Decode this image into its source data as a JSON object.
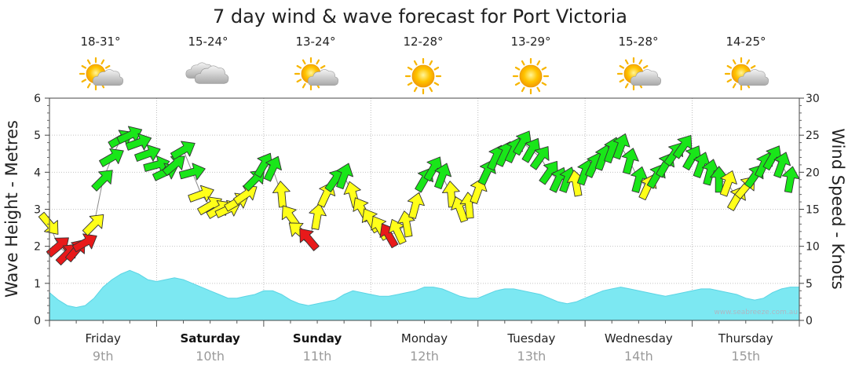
{
  "chart_data": {
    "type": "wind_wave_forecast",
    "title": "7 day wind & wave forecast for Port Victoria",
    "ylabel_left": "Wave Height - Metres",
    "ylabel_right": "Wind Speed - Knots",
    "ylim_left": [
      0,
      6
    ],
    "ylim_right": [
      0,
      30
    ],
    "yticks_left": [
      "0",
      "1",
      "2",
      "3",
      "4",
      "5",
      "6"
    ],
    "yticks_right": [
      "0",
      "5",
      "10",
      "15",
      "20",
      "25",
      "30"
    ],
    "grid": true,
    "credit": "www.seabreeze.com.au",
    "days": [
      {
        "name": "Friday",
        "date": "9th",
        "temp": "18-31°",
        "icon": "sun-cloud-icon",
        "bold": false
      },
      {
        "name": "Saturday",
        "date": "10th",
        "temp": "15-24°",
        "icon": "cloud-icon",
        "bold": true
      },
      {
        "name": "Sunday",
        "date": "11th",
        "temp": "13-24°",
        "icon": "sun-cloud-icon",
        "bold": true
      },
      {
        "name": "Monday",
        "date": "12th",
        "temp": "12-28°",
        "icon": "sun-icon",
        "bold": false
      },
      {
        "name": "Tuesday",
        "date": "13th",
        "temp": "13-29°",
        "icon": "sun-icon",
        "bold": false
      },
      {
        "name": "Wednesday",
        "date": "14th",
        "temp": "15-28°",
        "icon": "sun-cloud-icon",
        "bold": false
      },
      {
        "name": "Thursday",
        "date": "15th",
        "temp": "14-25°",
        "icon": "sun-cloud-icon",
        "bold": false
      }
    ],
    "x_hours": [
      0,
      2,
      4,
      6,
      8,
      10,
      12,
      14,
      16,
      18,
      20,
      22,
      24,
      26,
      28,
      30,
      32,
      34,
      36,
      38,
      40,
      42,
      44,
      46,
      48,
      50,
      52,
      54,
      56,
      58,
      60,
      62,
      64,
      66,
      68,
      70,
      72,
      74,
      76,
      78,
      80,
      82,
      84,
      86,
      88,
      90,
      92,
      94,
      96,
      98,
      100,
      102,
      104,
      106,
      108,
      110,
      112,
      114,
      116,
      118,
      120,
      122,
      124,
      126,
      128,
      130,
      132,
      134,
      136,
      138,
      140,
      142,
      144,
      146,
      148,
      150,
      152,
      154,
      156,
      158,
      160,
      162,
      164,
      166
    ],
    "wave_height_m": [
      0.75,
      0.55,
      0.4,
      0.35,
      0.4,
      0.6,
      0.9,
      1.1,
      1.25,
      1.35,
      1.25,
      1.1,
      1.05,
      1.1,
      1.15,
      1.1,
      1.0,
      0.9,
      0.8,
      0.7,
      0.6,
      0.6,
      0.65,
      0.7,
      0.8,
      0.8,
      0.7,
      0.55,
      0.45,
      0.4,
      0.45,
      0.5,
      0.55,
      0.7,
      0.8,
      0.75,
      0.7,
      0.65,
      0.65,
      0.7,
      0.75,
      0.8,
      0.9,
      0.9,
      0.85,
      0.75,
      0.65,
      0.6,
      0.6,
      0.7,
      0.8,
      0.85,
      0.85,
      0.8,
      0.75,
      0.7,
      0.6,
      0.5,
      0.45,
      0.5,
      0.6,
      0.7,
      0.8,
      0.85,
      0.9,
      0.85,
      0.8,
      0.75,
      0.7,
      0.65,
      0.7,
      0.75,
      0.8,
      0.85,
      0.85,
      0.8,
      0.75,
      0.7,
      0.6,
      0.55,
      0.6,
      0.75,
      0.85,
      0.9
    ],
    "wind_time_hours": [
      0,
      2,
      4,
      6,
      8,
      10,
      12,
      14,
      16,
      18,
      20,
      22,
      24,
      26,
      28,
      30,
      32,
      34,
      36,
      38,
      40,
      42,
      44,
      46,
      48,
      50,
      52,
      54,
      56,
      58,
      60,
      62,
      64,
      66,
      68,
      70,
      72,
      74,
      76,
      78,
      80,
      82,
      84,
      86,
      88,
      90,
      92,
      94,
      96,
      98,
      100,
      102,
      104,
      106,
      108,
      110,
      112,
      114,
      116,
      118,
      120,
      122,
      124,
      126,
      128,
      130,
      132,
      134,
      136,
      138,
      140,
      142,
      144,
      146,
      148,
      150,
      152,
      154,
      156,
      158,
      160,
      162,
      164,
      166
    ],
    "wind_speed_kts": [
      13,
      10,
      9,
      9.5,
      10.5,
      13,
      19,
      22,
      24.5,
      25,
      24,
      22.5,
      21,
      20,
      21,
      23,
      20,
      17,
      15.5,
      15,
      15,
      16,
      17,
      19,
      21,
      20.5,
      17,
      14,
      12,
      11,
      14,
      17,
      19,
      19.5,
      17,
      15,
      13.5,
      12.5,
      11.5,
      12,
      13,
      15.5,
      19,
      20.5,
      19.5,
      17,
      15,
      15.5,
      17.5,
      20,
      22,
      22.5,
      23,
      24,
      23,
      22,
      20,
      19,
      19,
      18.5,
      20,
      21,
      22,
      23,
      23.5,
      21.5,
      19,
      18,
      19.5,
      21,
      22.5,
      23.5,
      22,
      21,
      20,
      19,
      18.5,
      16.5,
      18,
      19.5,
      21,
      22,
      21,
      19
    ],
    "wind_dir_from_deg": [
      320,
      230,
      225,
      220,
      240,
      225,
      225,
      240,
      240,
      245,
      250,
      250,
      255,
      245,
      230,
      240,
      255,
      250,
      240,
      240,
      245,
      240,
      235,
      225,
      210,
      205,
      175,
      145,
      130,
      140,
      190,
      205,
      215,
      200,
      165,
      150,
      150,
      150,
      150,
      155,
      170,
      195,
      210,
      210,
      200,
      175,
      160,
      175,
      200,
      205,
      205,
      205,
      205,
      210,
      210,
      215,
      215,
      205,
      200,
      170,
      200,
      205,
      200,
      200,
      200,
      195,
      195,
      205,
      210,
      210,
      215,
      215,
      210,
      200,
      195,
      180,
      200,
      210,
      220,
      215,
      205,
      210,
      200,
      190
    ],
    "wind_color_bands": {
      "red": "#e8191a",
      "yellow": "#ffff19",
      "green": "#19e619",
      "calm_threshold_kts": 12,
      "strong_threshold_kts": 19
    },
    "wave_fill_color": "#7ce8f2",
    "wave_stroke_color": "#5bd4e4"
  }
}
